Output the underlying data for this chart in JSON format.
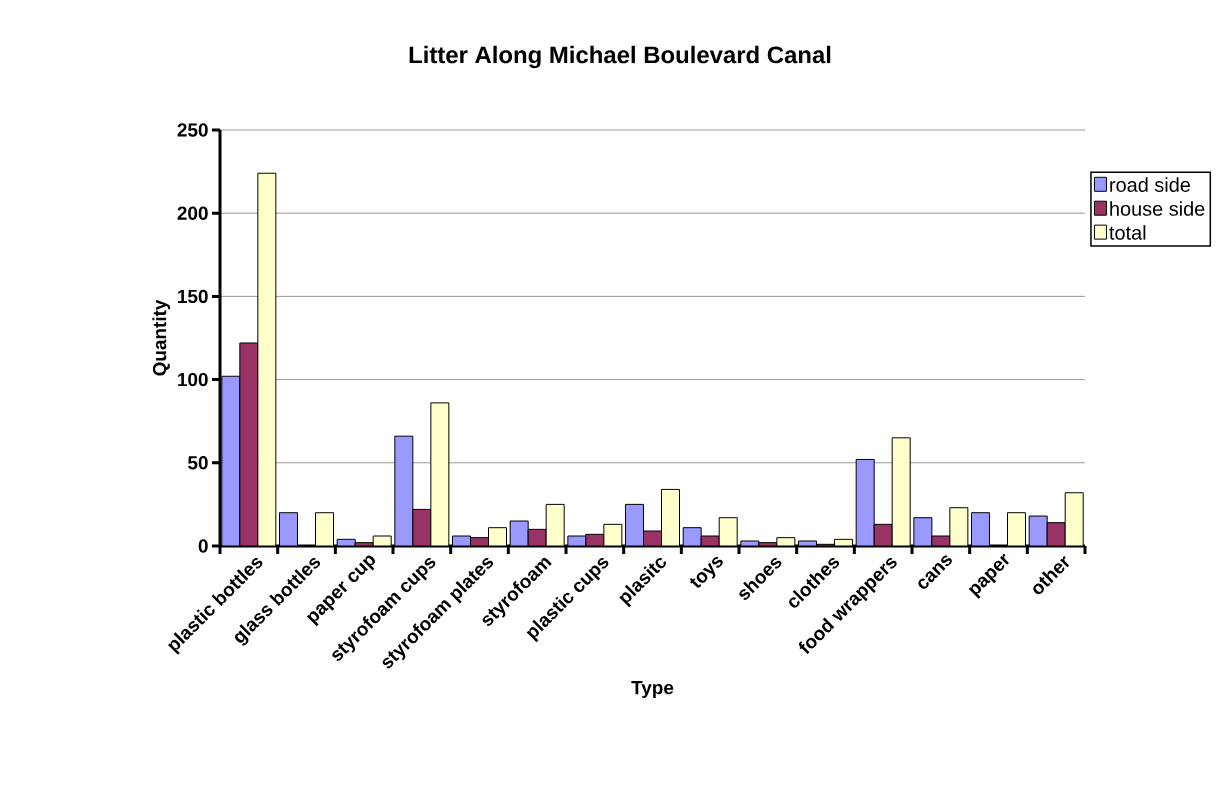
{
  "chart_data": {
    "type": "bar",
    "title": "Litter Along Michael Boulevard Canal",
    "xlabel": "Type",
    "ylabel": "Quantity",
    "categories": [
      "plastic bottles",
      "glass bottles",
      "paper cup",
      "styrofoam cups",
      "styrofoam plates",
      "styrofoam",
      "plastic cups",
      "plasitc",
      "toys",
      "shoes",
      "clothes",
      "food wrappers",
      "cans",
      "paper",
      "other"
    ],
    "series": [
      {
        "name": "road side",
        "color": "#9999ff",
        "values": [
          102,
          20,
          4,
          66,
          6,
          15,
          6,
          25,
          11,
          3,
          3,
          52,
          17,
          20,
          18
        ]
      },
      {
        "name": "house side",
        "color": "#993366",
        "values": [
          122,
          0,
          2,
          22,
          5,
          10,
          7,
          9,
          6,
          2,
          1,
          13,
          6,
          0,
          14
        ]
      },
      {
        "name": "total",
        "color": "#ffffcc",
        "values": [
          224,
          20,
          6,
          86,
          11,
          25,
          13,
          34,
          17,
          5,
          4,
          65,
          23,
          20,
          32
        ]
      }
    ],
    "ylim": [
      0,
      250
    ],
    "yticks": [
      0,
      50,
      100,
      150,
      200,
      250
    ],
    "grid": "y",
    "legend": "right"
  }
}
